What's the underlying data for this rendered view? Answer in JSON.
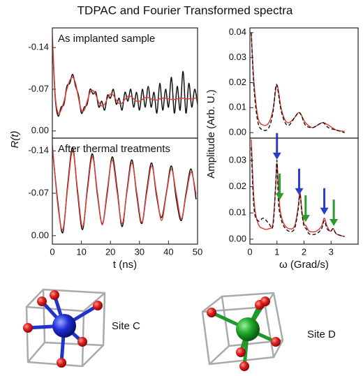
{
  "title": "TDPAC and Fourier Transformed spectra",
  "structures": [
    {
      "label": "Site C"
    },
    {
      "label": "Site D"
    }
  ],
  "chart_data": [
    {
      "type": "line",
      "annotation": "As implanted sample",
      "x": [
        0,
        1,
        2,
        3,
        4,
        5,
        6,
        7,
        8,
        9,
        10,
        11,
        12,
        13,
        14,
        15,
        16,
        17,
        18,
        19,
        20,
        21,
        22,
        23,
        24,
        25,
        26,
        27,
        28,
        29,
        30,
        31,
        32,
        33,
        34,
        35,
        36,
        37,
        38,
        39,
        40,
        41,
        42,
        43,
        44,
        45,
        46,
        47,
        48,
        49,
        50
      ],
      "series": [
        {
          "name": "data",
          "color": "#111111",
          "dashed": false,
          "values": [
            -0.155,
            -0.055,
            -0.025,
            -0.04,
            -0.045,
            -0.075,
            -0.08,
            -0.095,
            -0.075,
            -0.06,
            -0.03,
            -0.04,
            -0.045,
            -0.07,
            -0.062,
            -0.065,
            -0.04,
            -0.05,
            -0.035,
            -0.06,
            -0.055,
            -0.07,
            -0.045,
            -0.055,
            -0.035,
            -0.065,
            -0.05,
            -0.07,
            -0.04,
            -0.065,
            -0.035,
            -0.07,
            -0.04,
            -0.075,
            -0.04,
            -0.065,
            -0.03,
            -0.08,
            -0.035,
            -0.07,
            -0.04,
            -0.09,
            -0.03,
            -0.075,
            -0.035,
            -0.1,
            -0.03,
            -0.08,
            -0.04,
            -0.07,
            -0.045
          ]
        },
        {
          "name": "fit",
          "color": "#e0403a",
          "dashed": false,
          "values": [
            -0.16,
            -0.06,
            -0.03,
            -0.035,
            -0.05,
            -0.07,
            -0.085,
            -0.09,
            -0.08,
            -0.055,
            -0.035,
            -0.035,
            -0.05,
            -0.065,
            -0.068,
            -0.06,
            -0.048,
            -0.042,
            -0.045,
            -0.055,
            -0.062,
            -0.06,
            -0.052,
            -0.046,
            -0.047,
            -0.053,
            -0.058,
            -0.058,
            -0.054,
            -0.05,
            -0.05,
            -0.053,
            -0.056,
            -0.056,
            -0.054,
            -0.052,
            -0.052,
            -0.054,
            -0.055,
            -0.055,
            -0.054,
            -0.053,
            -0.053,
            -0.054,
            -0.055,
            -0.055,
            -0.054,
            -0.054,
            -0.054,
            -0.055,
            -0.055
          ]
        }
      ],
      "xlim": [
        0,
        50
      ],
      "ylim": [
        0.012,
        -0.173
      ],
      "yticks": [
        -0.14,
        -0.07,
        {
          "value": 0,
          "label": "0.00"
        }
      ]
    },
    {
      "type": "line",
      "annotation": "After thermal treatments",
      "xlabel": "t (ns)",
      "ylabel": "R(t)",
      "x": [
        0,
        1.9,
        3.6,
        5.3,
        7.0,
        8.7,
        10.4,
        12.1,
        13.8,
        15.5,
        17.2,
        18.9,
        20.6,
        22.3,
        24.0,
        25.7,
        27.4,
        29.1,
        30.8,
        32.5,
        34.2,
        35.9,
        37.6,
        39.3,
        41.0,
        42.7,
        44.4,
        46.1,
        47.8,
        49.5
      ],
      "series": [
        {
          "name": "data",
          "color": "#111111",
          "dashed": false,
          "values": [
            -0.145,
            -0.055,
            -0.005,
            -0.085,
            -0.145,
            -0.07,
            -0.01,
            -0.08,
            -0.135,
            -0.068,
            -0.02,
            -0.07,
            -0.13,
            -0.078,
            -0.015,
            -0.075,
            -0.125,
            -0.065,
            -0.02,
            -0.075,
            -0.12,
            -0.065,
            -0.03,
            -0.072,
            -0.115,
            -0.06,
            -0.025,
            -0.072,
            -0.11,
            -0.06
          ]
        },
        {
          "name": "fit",
          "color": "#e0403a",
          "dashed": false,
          "values": [
            -0.15,
            -0.05,
            -0.01,
            -0.08,
            -0.14,
            -0.075,
            -0.015,
            -0.075,
            -0.13,
            -0.072,
            -0.018,
            -0.075,
            -0.125,
            -0.072,
            -0.02,
            -0.072,
            -0.12,
            -0.07,
            -0.022,
            -0.07,
            -0.115,
            -0.07,
            -0.025,
            -0.07,
            -0.11,
            -0.068,
            -0.028,
            -0.068,
            -0.105,
            -0.068
          ]
        }
      ],
      "xlim": [
        0,
        50
      ],
      "ylim": [
        0.014,
        -0.161
      ],
      "xticks": [
        0,
        10,
        20,
        30,
        40,
        50
      ],
      "yticks": [
        -0.14,
        -0.07,
        {
          "value": 0,
          "label": "0.00"
        }
      ]
    },
    {
      "type": "line",
      "x": [
        0.05,
        0.15,
        0.3,
        0.5,
        0.7,
        0.85,
        0.95,
        1.0,
        1.05,
        1.15,
        1.3,
        1.45,
        1.65,
        1.8,
        1.9,
        2.05,
        2.3,
        2.5,
        2.7,
        2.9,
        3.2,
        3.5
      ],
      "series": [
        {
          "name": "fit",
          "color": "#e0403a",
          "dashed": false,
          "values": [
            0.04,
            0.02,
            0.006,
            0.003,
            0.004,
            0.009,
            0.017,
            0.019,
            0.017,
            0.01,
            0.005,
            0.004,
            0.006,
            0.008,
            0.007,
            0.004,
            0.002,
            0.003,
            0.004,
            0.003,
            0.001,
            0.0005
          ]
        },
        {
          "name": "data",
          "color": "#111111",
          "dashed": true,
          "values": [
            0.04,
            0.018,
            0.004,
            0.001,
            0.002,
            0.008,
            0.018,
            0.019,
            0.016,
            0.009,
            0.004,
            0.003,
            0.006,
            0.008,
            0.007,
            0.003,
            0.002,
            0.003,
            0.004,
            0.002,
            0.001,
            0.0
          ]
        }
      ],
      "xlim": [
        0,
        4.0
      ],
      "ylim": [
        -0.0022,
        0.0419
      ],
      "yticks": [
        {
          "value": 0,
          "label": "0.00"
        },
        0.01,
        0.02,
        0.03,
        0.04
      ]
    },
    {
      "type": "line",
      "xlabel": "ω (Grad/s)",
      "ylabel": "Amplitude (Arb. U.)",
      "x": [
        0.05,
        0.15,
        0.3,
        0.5,
        0.7,
        0.85,
        0.95,
        1.0,
        1.05,
        1.12,
        1.25,
        1.45,
        1.65,
        1.78,
        1.85,
        1.92,
        2.0,
        2.08,
        2.2,
        2.45,
        2.65,
        2.75,
        2.85,
        2.98,
        3.08,
        3.2,
        3.5
      ],
      "series": [
        {
          "name": "fit",
          "color": "#e0403a",
          "dashed": false,
          "values": [
            0.038,
            0.015,
            0.006,
            0.004,
            0.004,
            0.006,
            0.02,
            0.029,
            0.02,
            0.011,
            0.006,
            0.004,
            0.005,
            0.012,
            0.018,
            0.011,
            0.006,
            0.005,
            0.003,
            0.003,
            0.005,
            0.008,
            0.005,
            0.003,
            0.004,
            0.002,
            0.001
          ]
        },
        {
          "name": "data",
          "color": "#111111",
          "dashed": true,
          "values": [
            0.035,
            0.012,
            0.007,
            0.008,
            0.006,
            0.005,
            0.02,
            0.03,
            0.015,
            0.009,
            0.005,
            0.003,
            0.004,
            0.011,
            0.017,
            0.01,
            0.005,
            0.004,
            0.002,
            0.002,
            0.004,
            0.007,
            0.004,
            0.003,
            0.004,
            0.002,
            0.001
          ]
        }
      ],
      "arrows": [
        {
          "x": 1.0,
          "color": "#2a3fc8"
        },
        {
          "x": 1.1,
          "color": "#2e9a2e"
        },
        {
          "x": 1.82,
          "color": "#2a3fc8"
        },
        {
          "x": 2.06,
          "color": "#2e9a2e"
        },
        {
          "x": 2.75,
          "color": "#2a3fc8"
        },
        {
          "x": 3.1,
          "color": "#2e9a2e"
        }
      ],
      "xlim": [
        0,
        4.0
      ],
      "ylim": [
        -0.0019,
        0.0385
      ],
      "xticks": [
        0,
        1,
        2,
        3
      ],
      "yticks": [
        {
          "value": 0,
          "label": "0.00"
        },
        0.01,
        0.02,
        0.03
      ]
    }
  ]
}
